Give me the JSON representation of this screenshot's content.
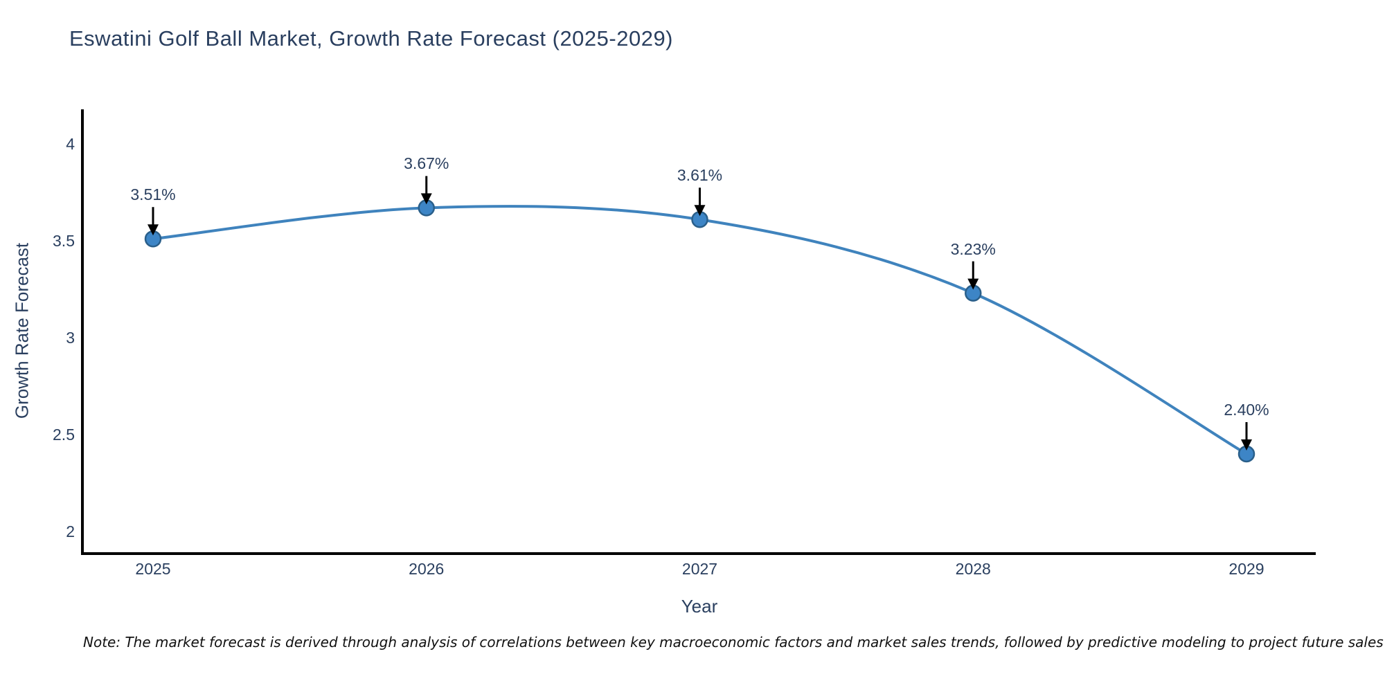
{
  "chart": {
    "title": "Eswatini Golf Ball Market, Growth Rate Forecast (2025-2029)",
    "x_axis": {
      "title": "Year",
      "ticks": [
        "2025",
        "2026",
        "2027",
        "2028",
        "2029"
      ]
    },
    "y_axis": {
      "title": "Growth Rate Forecast",
      "ticks": [
        "4",
        "3.5",
        "3",
        "2.5",
        "2"
      ]
    },
    "note": "Note: The market forecast is derived through analysis of correlations between key macroeconomic factors and market sales trends, followed by predictive modeling to project future sales",
    "colors": {
      "line": "#3f83bd",
      "marker_fill": "#3d85c6",
      "marker_edge": "#2a5f8a",
      "arrow": "#000000",
      "axis": "#000000",
      "text": "#2a3f5f"
    }
  },
  "chart_data": {
    "type": "line",
    "title": "Eswatini Golf Ball Market, Growth Rate Forecast (2025-2029)",
    "xlabel": "Year",
    "ylabel": "Growth Rate Forecast",
    "x": [
      2025,
      2026,
      2027,
      2028,
      2029
    ],
    "series": [
      {
        "name": "Growth Rate Forecast",
        "values": [
          3.51,
          3.67,
          3.61,
          3.23,
          2.4
        ]
      }
    ],
    "point_labels": [
      "3.51%",
      "3.67%",
      "3.61%",
      "3.23%",
      "2.40%"
    ],
    "yticks": [
      4,
      3.5,
      3,
      2.5,
      2
    ],
    "ylim": [
      1.89,
      4.17
    ],
    "xlim": [
      2024.74,
      2029.25
    ],
    "grid": false,
    "legend": false,
    "line_shape": "spline",
    "annotation_style": "value-label-with-down-arrow-to-point"
  }
}
